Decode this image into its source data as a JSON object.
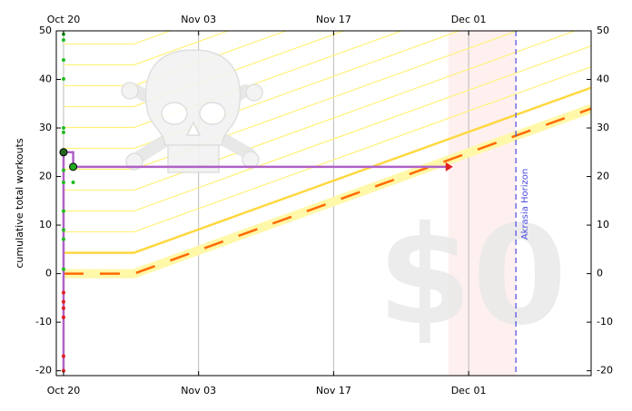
{
  "chart_data": {
    "type": "line",
    "y_label": "cumulative total workouts",
    "xlim": [
      -0.75,
      54.7
    ],
    "xticks": [
      {
        "value": 0,
        "label": "Oct 20"
      },
      {
        "value": 14,
        "label": "Nov 03"
      },
      {
        "value": 28,
        "label": "Nov 17"
      },
      {
        "value": 42,
        "label": "Dec 01"
      }
    ],
    "ylim": [
      -21,
      50
    ],
    "yticks": [
      -20,
      -10,
      0,
      10,
      20,
      30,
      40,
      50
    ],
    "y2lim": [
      -21,
      50
    ],
    "y2ticks": [
      -20,
      -10,
      0,
      10,
      20,
      30,
      40,
      50
    ],
    "grid": true,
    "road": {
      "x": [
        0,
        7.3,
        54.7
      ],
      "values": [
        0,
        0,
        34
      ],
      "color": "#ff6a00",
      "band_color": "#fff8a8"
    },
    "lane_offset": 4.3,
    "lane_color": "#ffd840",
    "guides": [
      8.6,
      12.9,
      17.2,
      21.5,
      25.8,
      30.1,
      34.4,
      38.7,
      43,
      47.3
    ],
    "guide_color": "#fff27a",
    "progress": {
      "x": [
        0,
        0,
        1,
        1,
        39.9
      ],
      "values": [
        -20,
        25,
        25,
        22,
        22
      ],
      "color": "#b060c8"
    },
    "points": {
      "x": [
        0,
        0,
        0,
        0,
        0,
        0,
        0,
        0,
        0,
        0,
        0,
        0,
        1,
        0,
        0,
        0,
        0,
        0,
        0,
        0,
        1
      ],
      "values": [
        49.3,
        48.1,
        44,
        40.1,
        30,
        29.1,
        18.8,
        12.9,
        9,
        7.1,
        0.9,
        25,
        18.8,
        -3.9,
        -5.8,
        -7.1,
        -9,
        -17,
        -20,
        21.3,
        22
      ],
      "colors": [
        "#22bb22",
        "#22bb22",
        "#22bb22",
        "#22bb22",
        "#22bb22",
        "#22bb22",
        "#22bb22",
        "#22bb22",
        "#22bb22",
        "#22bb22",
        "#22bb22",
        "#226622",
        "#22bb22",
        "#e02020",
        "#e02020",
        "#e02020",
        "#e02020",
        "#e02020",
        "#e02020",
        "#22bb22",
        "#22aa22"
      ]
    },
    "today": 39.9,
    "horizon": 46.9,
    "horizon_label": "Akrasia Horizon",
    "horizon_color": "#4a4ae0",
    "watermark": "$0"
  }
}
